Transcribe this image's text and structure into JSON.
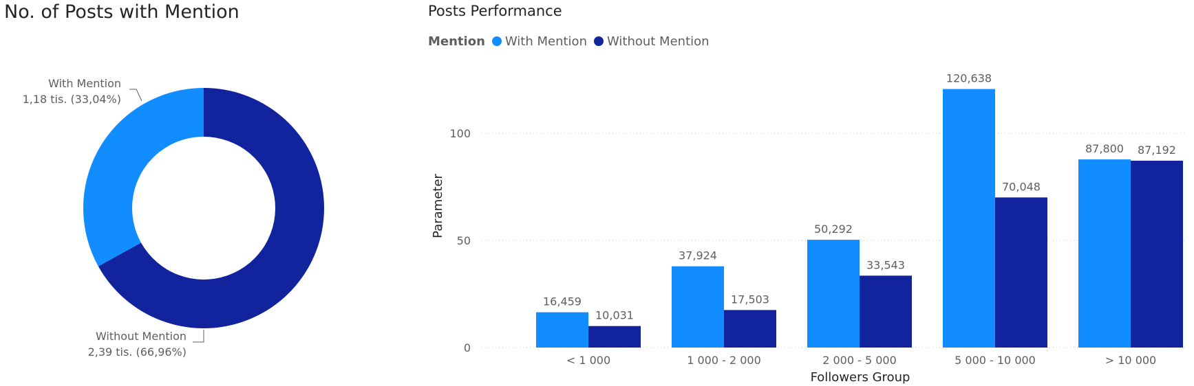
{
  "colors": {
    "with_mention": "#118DFF",
    "without_mention": "#12239E",
    "text": "#252423",
    "muted": "#605e5c",
    "grid": "#c8c6c4"
  },
  "chart_data": [
    {
      "type": "pie",
      "variant": "donut",
      "title": "No. of Posts with Mention",
      "slices": [
        {
          "name": "With Mention",
          "value_label": "1,18 tis. (33,04%)",
          "percent": 33.04
        },
        {
          "name": "Without Mention",
          "value_label": "2,39 tis. (66,96%)",
          "percent": 66.96
        }
      ]
    },
    {
      "type": "bar",
      "title": "Posts Performance",
      "legend_title": "Mention",
      "legend_position": "top-left",
      "xlabel": "Followers Group",
      "ylabel": "Parameter",
      "ylim": [
        0,
        130
      ],
      "yticks": [
        0,
        50,
        100
      ],
      "grid": true,
      "categories": [
        "< 1 000",
        "1 000 - 2 000",
        "2 000 - 5 000",
        "5 000 - 10 000",
        "> 10 000"
      ],
      "series": [
        {
          "name": "With Mention",
          "values": [
            16.459,
            37.924,
            50.292,
            120.638,
            87.8
          ],
          "labels": [
            "16,459",
            "37,924",
            "50,292",
            "120,638",
            "87,800"
          ]
        },
        {
          "name": "Without Mention",
          "values": [
            10.031,
            17.503,
            33.543,
            70.048,
            87.192
          ],
          "labels": [
            "10,031",
            "17,503",
            "33,543",
            "70,048",
            "87,192"
          ]
        }
      ]
    }
  ]
}
